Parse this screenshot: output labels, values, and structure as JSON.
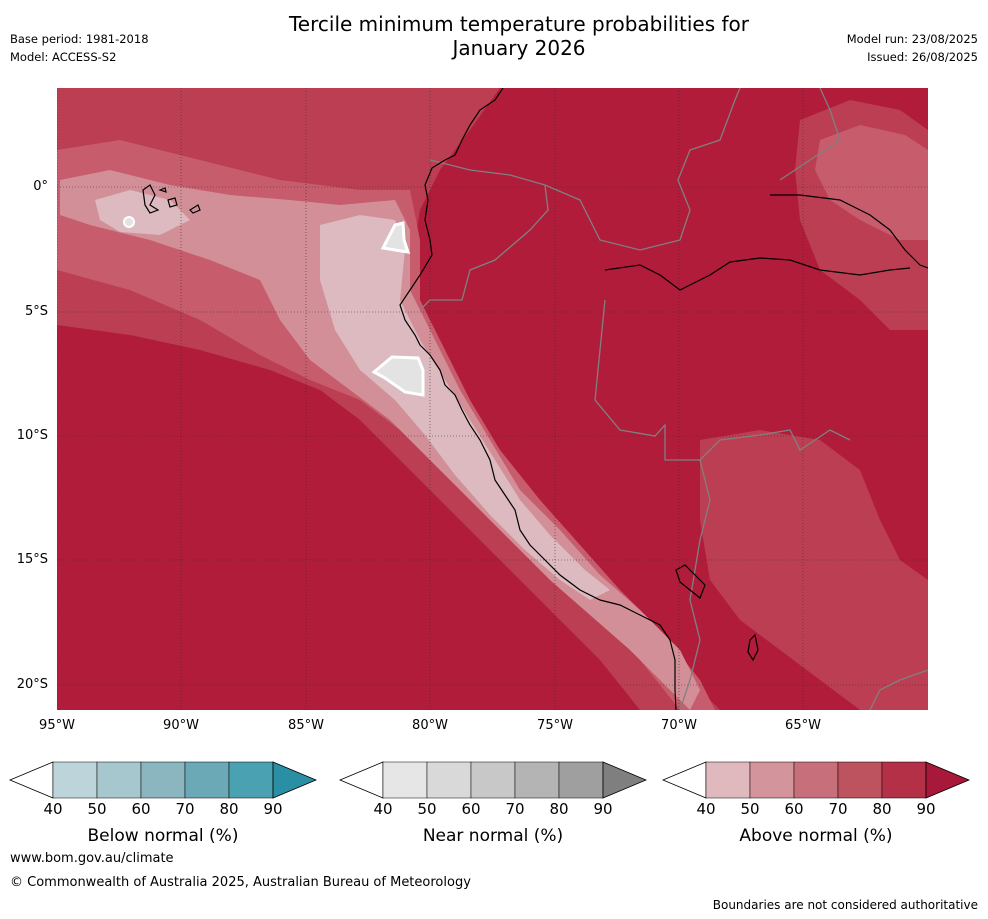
{
  "header": {
    "title_line1": "Tercile minimum temperature probabilities for",
    "title_line2": "January 2026",
    "base_period": "Base period: 1981-2018",
    "model": "Model: ACCESS-S2",
    "model_run": "Model run: 23/08/2025",
    "issued": "Issued: 26/08/2025"
  },
  "map": {
    "lat_labels": [
      "0°",
      "5°S",
      "10°S",
      "15°S",
      "20°S"
    ],
    "lon_labels": [
      "95°W",
      "90°W",
      "85°W",
      "80°W",
      "75°W",
      "70°W",
      "65°W"
    ],
    "colors": {
      "ocean_above_90": "#b01c3a",
      "above_80": "#bc3e52",
      "above_70": "#c75d6c",
      "above_60": "#d28f98",
      "above_50": "#dcbabf",
      "near_normal": "#e3e3e3",
      "coast": "#000000",
      "border": "#808080"
    }
  },
  "legends": [
    {
      "title": "Below normal (%)",
      "ticks": [
        "40",
        "50",
        "60",
        "70",
        "80",
        "90"
      ],
      "colors": [
        "#ffffff",
        "#bdd5da",
        "#a6c7cd",
        "#8bb6c0",
        "#6aa9b5",
        "#49a1b2",
        "#2a8fa5"
      ]
    },
    {
      "title": "Near normal (%)",
      "ticks": [
        "40",
        "50",
        "60",
        "70",
        "80",
        "90"
      ],
      "colors": [
        "#ffffff",
        "#e6e6e6",
        "#d9d9d9",
        "#c8c8c8",
        "#b4b4b4",
        "#9f9f9f",
        "#7f7f7f"
      ]
    },
    {
      "title": "Above normal (%)",
      "ticks": [
        "40",
        "50",
        "60",
        "70",
        "80",
        "90"
      ],
      "colors": [
        "#ffffff",
        "#dfb9be",
        "#d4949b",
        "#c7707b",
        "#bd535f",
        "#b43047",
        "#a8183a"
      ]
    }
  ],
  "footer": {
    "url": "www.bom.gov.au/climate",
    "copyright": "© Commonwealth of Australia 2025, Australian Bureau of Meteorology",
    "disclaimer": "Boundaries are not considered authoritative"
  }
}
